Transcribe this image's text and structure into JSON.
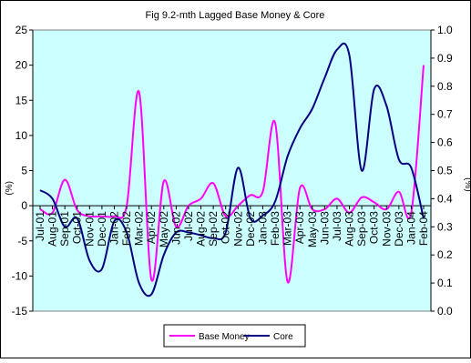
{
  "chart_data": {
    "type": "line",
    "title": "Fig 9.2-mth Lagged Base Money & Core",
    "ylabel_left": "(%)",
    "ylabel_right": "(%)",
    "xlabel": "",
    "y_left_lim": [
      -15,
      25
    ],
    "y_left_ticks": [
      "-15",
      "-10",
      "-5",
      "0",
      "5",
      "10",
      "15",
      "20",
      "25"
    ],
    "y_right_lim": [
      0.0,
      1.0
    ],
    "y_right_ticks": [
      "0.0",
      "0.1",
      "0.2",
      "0.3",
      "0.4",
      "0.5",
      "0.6",
      "0.7",
      "0.8",
      "0.9",
      "1.0"
    ],
    "categories": [
      "Jul-01",
      "Aug-01",
      "Sep-01",
      "Oct-01",
      "Nov-01",
      "Dec-01",
      "Jan-02",
      "Feb-02",
      "Mar-02",
      "Apr-02",
      "May-02",
      "Jun-02",
      "Jul-02",
      "Aug-02",
      "Sep-02",
      "Oct-02",
      "Nov-02",
      "Dec-02",
      "Jan-03",
      "Feb-03",
      "Mar-03",
      "Apr-03",
      "May-03",
      "Jun-03",
      "Jul-03",
      "Aug-03",
      "Sep-03",
      "Oct-03",
      "Nov-03",
      "Dec-03",
      "Jan-04",
      "Feb-04"
    ],
    "plot_background": "#ccffff",
    "grid": false,
    "legend_position": "bottom",
    "series": [
      {
        "name": "Base Money",
        "axis": "left",
        "color": "#ff00ff",
        "values": [
          -0.5,
          -1.0,
          3.7,
          -0.6,
          -1.5,
          -1.5,
          -1.5,
          0.0,
          16.2,
          -10.5,
          3.5,
          -3.0,
          0.0,
          1.0,
          3.2,
          -1.5,
          0.0,
          1.5,
          2.0,
          11.8,
          -10.8,
          2.5,
          -0.5,
          -0.5,
          1.0,
          -1.0,
          1.2,
          0.5,
          -0.5,
          2.0,
          -1.0,
          20.0
        ]
      },
      {
        "name": "Core",
        "axis": "right",
        "color": "#000080",
        "values": [
          0.43,
          0.4,
          0.3,
          0.33,
          0.18,
          0.15,
          0.32,
          0.28,
          0.1,
          0.06,
          0.2,
          0.28,
          0.28,
          0.27,
          0.26,
          0.28,
          0.51,
          0.33,
          0.34,
          0.39,
          0.55,
          0.65,
          0.72,
          0.83,
          0.93,
          0.91,
          0.5,
          0.79,
          0.73,
          0.54,
          0.51,
          0.33
        ]
      }
    ]
  }
}
